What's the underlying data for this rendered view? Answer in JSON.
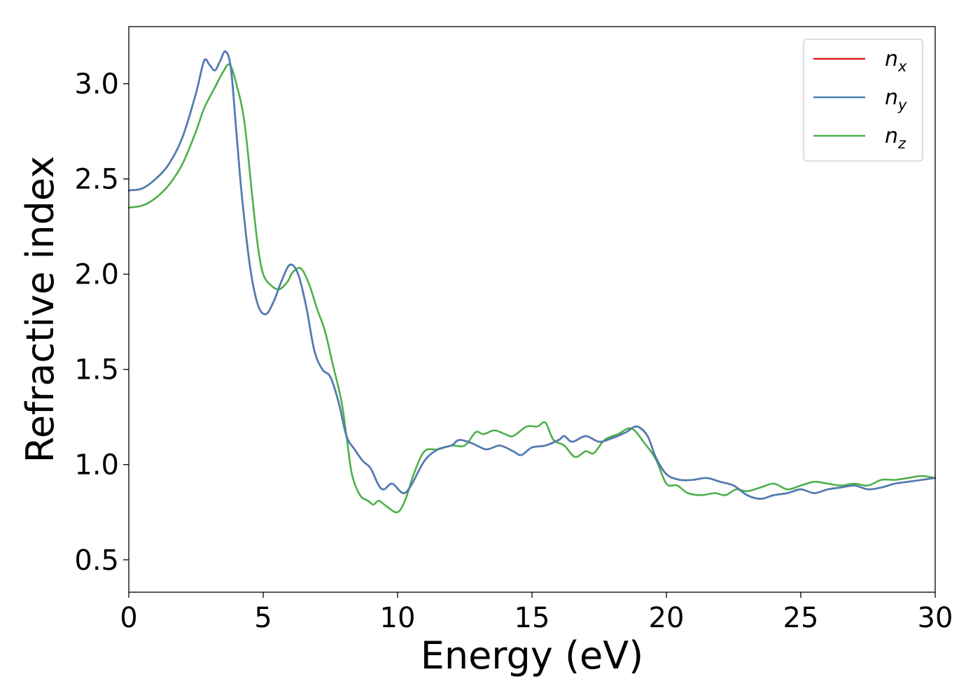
{
  "chart_data": {
    "type": "line",
    "xlabel": "Energy (eV)",
    "ylabel": "Refractive index",
    "xlim": [
      0,
      30
    ],
    "ylim": [
      0.33,
      3.3
    ],
    "xticks": [
      "0",
      "5",
      "10",
      "15",
      "20",
      "25",
      "30"
    ],
    "xtick_values": [
      0,
      5,
      10,
      15,
      20,
      25,
      30
    ],
    "yticks": [
      "0.5",
      "1.0",
      "1.5",
      "2.0",
      "2.5",
      "3.0"
    ],
    "ytick_values": [
      0.5,
      1.0,
      1.5,
      2.0,
      2.5,
      3.0
    ],
    "grid": false,
    "legend_position": "top-right",
    "series": [
      {
        "name": "n",
        "sub": "x",
        "color": "#e41a1c",
        "points": [
          [
            0,
            2.44
          ],
          [
            0.5,
            2.45
          ],
          [
            1,
            2.5
          ],
          [
            1.5,
            2.58
          ],
          [
            2,
            2.72
          ],
          [
            2.5,
            2.95
          ],
          [
            2.8,
            3.12
          ],
          [
            3.0,
            3.1
          ],
          [
            3.2,
            3.07
          ],
          [
            3.4,
            3.12
          ],
          [
            3.6,
            3.17
          ],
          [
            3.8,
            3.08
          ],
          [
            4.0,
            2.75
          ],
          [
            4.2,
            2.42
          ],
          [
            4.5,
            2.05
          ],
          [
            4.8,
            1.84
          ],
          [
            5.1,
            1.79
          ],
          [
            5.4,
            1.86
          ],
          [
            5.7,
            1.97
          ],
          [
            6.0,
            2.05
          ],
          [
            6.3,
            2.0
          ],
          [
            6.6,
            1.83
          ],
          [
            6.9,
            1.6
          ],
          [
            7.2,
            1.5
          ],
          [
            7.5,
            1.46
          ],
          [
            7.8,
            1.33
          ],
          [
            8.1,
            1.15
          ],
          [
            8.4,
            1.08
          ],
          [
            8.7,
            1.02
          ],
          [
            9.0,
            0.98
          ],
          [
            9.3,
            0.89
          ],
          [
            9.5,
            0.87
          ],
          [
            9.8,
            0.9
          ],
          [
            10.2,
            0.85
          ],
          [
            10.5,
            0.89
          ],
          [
            11.0,
            1.02
          ],
          [
            11.5,
            1.08
          ],
          [
            12.0,
            1.1
          ],
          [
            12.3,
            1.13
          ],
          [
            12.8,
            1.11
          ],
          [
            13.3,
            1.08
          ],
          [
            13.8,
            1.1
          ],
          [
            14.3,
            1.07
          ],
          [
            14.6,
            1.05
          ],
          [
            15.0,
            1.09
          ],
          [
            15.5,
            1.1
          ],
          [
            16.0,
            1.13
          ],
          [
            16.2,
            1.15
          ],
          [
            16.5,
            1.12
          ],
          [
            17.0,
            1.15
          ],
          [
            17.5,
            1.12
          ],
          [
            18.0,
            1.14
          ],
          [
            18.5,
            1.17
          ],
          [
            18.9,
            1.2
          ],
          [
            19.3,
            1.15
          ],
          [
            19.6,
            1.04
          ],
          [
            20.0,
            0.95
          ],
          [
            20.5,
            0.92
          ],
          [
            21.0,
            0.92
          ],
          [
            21.5,
            0.93
          ],
          [
            22.0,
            0.91
          ],
          [
            22.5,
            0.89
          ],
          [
            23.0,
            0.84
          ],
          [
            23.5,
            0.82
          ],
          [
            24.0,
            0.84
          ],
          [
            24.5,
            0.85
          ],
          [
            25.0,
            0.87
          ],
          [
            25.5,
            0.85
          ],
          [
            26.0,
            0.87
          ],
          [
            26.5,
            0.88
          ],
          [
            27.0,
            0.89
          ],
          [
            27.5,
            0.87
          ],
          [
            28.0,
            0.88
          ],
          [
            28.5,
            0.9
          ],
          [
            29.0,
            0.91
          ],
          [
            29.5,
            0.92
          ],
          [
            30.0,
            0.93
          ]
        ]
      },
      {
        "name": "n",
        "sub": "y",
        "color": "#4a7fb8",
        "points": [
          [
            0,
            2.44
          ],
          [
            0.5,
            2.45
          ],
          [
            1,
            2.5
          ],
          [
            1.5,
            2.58
          ],
          [
            2,
            2.72
          ],
          [
            2.5,
            2.95
          ],
          [
            2.8,
            3.12
          ],
          [
            3.0,
            3.1
          ],
          [
            3.2,
            3.07
          ],
          [
            3.4,
            3.12
          ],
          [
            3.6,
            3.17
          ],
          [
            3.8,
            3.08
          ],
          [
            4.0,
            2.75
          ],
          [
            4.2,
            2.42
          ],
          [
            4.5,
            2.05
          ],
          [
            4.8,
            1.84
          ],
          [
            5.1,
            1.79
          ],
          [
            5.4,
            1.86
          ],
          [
            5.7,
            1.97
          ],
          [
            6.0,
            2.05
          ],
          [
            6.3,
            2.0
          ],
          [
            6.6,
            1.83
          ],
          [
            6.9,
            1.6
          ],
          [
            7.2,
            1.5
          ],
          [
            7.5,
            1.46
          ],
          [
            7.8,
            1.33
          ],
          [
            8.1,
            1.15
          ],
          [
            8.4,
            1.08
          ],
          [
            8.7,
            1.02
          ],
          [
            9.0,
            0.98
          ],
          [
            9.3,
            0.89
          ],
          [
            9.5,
            0.87
          ],
          [
            9.8,
            0.9
          ],
          [
            10.2,
            0.85
          ],
          [
            10.5,
            0.89
          ],
          [
            11.0,
            1.02
          ],
          [
            11.5,
            1.08
          ],
          [
            12.0,
            1.1
          ],
          [
            12.3,
            1.13
          ],
          [
            12.8,
            1.11
          ],
          [
            13.3,
            1.08
          ],
          [
            13.8,
            1.1
          ],
          [
            14.3,
            1.07
          ],
          [
            14.6,
            1.05
          ],
          [
            15.0,
            1.09
          ],
          [
            15.5,
            1.1
          ],
          [
            16.0,
            1.13
          ],
          [
            16.2,
            1.15
          ],
          [
            16.5,
            1.12
          ],
          [
            17.0,
            1.15
          ],
          [
            17.5,
            1.12
          ],
          [
            18.0,
            1.14
          ],
          [
            18.5,
            1.17
          ],
          [
            18.9,
            1.2
          ],
          [
            19.3,
            1.15
          ],
          [
            19.6,
            1.04
          ],
          [
            20.0,
            0.95
          ],
          [
            20.5,
            0.92
          ],
          [
            21.0,
            0.92
          ],
          [
            21.5,
            0.93
          ],
          [
            22.0,
            0.91
          ],
          [
            22.5,
            0.89
          ],
          [
            23.0,
            0.84
          ],
          [
            23.5,
            0.82
          ],
          [
            24.0,
            0.84
          ],
          [
            24.5,
            0.85
          ],
          [
            25.0,
            0.87
          ],
          [
            25.5,
            0.85
          ],
          [
            26.0,
            0.87
          ],
          [
            26.5,
            0.88
          ],
          [
            27.0,
            0.89
          ],
          [
            27.5,
            0.87
          ],
          [
            28.0,
            0.88
          ],
          [
            28.5,
            0.9
          ],
          [
            29.0,
            0.91
          ],
          [
            29.5,
            0.92
          ],
          [
            30.0,
            0.93
          ]
        ]
      },
      {
        "name": "n",
        "sub": "z",
        "color": "#4daf4a",
        "points": [
          [
            0,
            2.35
          ],
          [
            0.5,
            2.36
          ],
          [
            1,
            2.4
          ],
          [
            1.5,
            2.47
          ],
          [
            2,
            2.58
          ],
          [
            2.5,
            2.75
          ],
          [
            2.8,
            2.87
          ],
          [
            3.2,
            2.98
          ],
          [
            3.5,
            3.06
          ],
          [
            3.75,
            3.1
          ],
          [
            4.0,
            3.0
          ],
          [
            4.3,
            2.8
          ],
          [
            4.6,
            2.4
          ],
          [
            4.8,
            2.15
          ],
          [
            5.0,
            2.0
          ],
          [
            5.3,
            1.94
          ],
          [
            5.6,
            1.92
          ],
          [
            5.9,
            1.96
          ],
          [
            6.1,
            2.01
          ],
          [
            6.4,
            2.03
          ],
          [
            6.7,
            1.95
          ],
          [
            7.0,
            1.82
          ],
          [
            7.3,
            1.7
          ],
          [
            7.6,
            1.52
          ],
          [
            7.9,
            1.34
          ],
          [
            8.1,
            1.15
          ],
          [
            8.3,
            0.95
          ],
          [
            8.6,
            0.84
          ],
          [
            8.9,
            0.81
          ],
          [
            9.1,
            0.79
          ],
          [
            9.3,
            0.81
          ],
          [
            9.6,
            0.78
          ],
          [
            10.0,
            0.75
          ],
          [
            10.3,
            0.82
          ],
          [
            10.6,
            0.95
          ],
          [
            11.0,
            1.07
          ],
          [
            11.5,
            1.08
          ],
          [
            12.0,
            1.1
          ],
          [
            12.5,
            1.1
          ],
          [
            12.9,
            1.17
          ],
          [
            13.2,
            1.16
          ],
          [
            13.6,
            1.18
          ],
          [
            14.0,
            1.16
          ],
          [
            14.3,
            1.15
          ],
          [
            14.8,
            1.2
          ],
          [
            15.2,
            1.2
          ],
          [
            15.5,
            1.22
          ],
          [
            15.8,
            1.13
          ],
          [
            16.2,
            1.1
          ],
          [
            16.6,
            1.04
          ],
          [
            17.0,
            1.07
          ],
          [
            17.3,
            1.06
          ],
          [
            17.7,
            1.13
          ],
          [
            18.2,
            1.16
          ],
          [
            18.7,
            1.19
          ],
          [
            19.2,
            1.11
          ],
          [
            19.6,
            1.03
          ],
          [
            20.0,
            0.9
          ],
          [
            20.4,
            0.89
          ],
          [
            20.8,
            0.85
          ],
          [
            21.3,
            0.84
          ],
          [
            21.8,
            0.85
          ],
          [
            22.2,
            0.84
          ],
          [
            22.6,
            0.87
          ],
          [
            23.0,
            0.86
          ],
          [
            23.5,
            0.88
          ],
          [
            24.0,
            0.9
          ],
          [
            24.5,
            0.87
          ],
          [
            25.0,
            0.89
          ],
          [
            25.5,
            0.91
          ],
          [
            26.0,
            0.9
          ],
          [
            26.5,
            0.89
          ],
          [
            27.0,
            0.9
          ],
          [
            27.5,
            0.89
          ],
          [
            28.0,
            0.92
          ],
          [
            28.5,
            0.92
          ],
          [
            29.0,
            0.93
          ],
          [
            29.5,
            0.94
          ],
          [
            30.0,
            0.93
          ]
        ]
      }
    ]
  }
}
